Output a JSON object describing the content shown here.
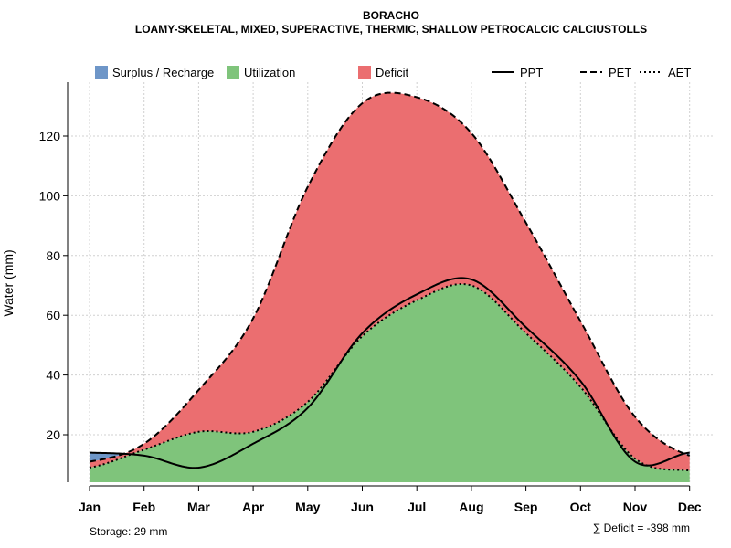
{
  "chart_data": {
    "type": "area",
    "title": "BORACHO",
    "subtitle": "LOAMY-SKELETAL, MIXED, SUPERACTIVE, THERMIC, SHALLOW PETROCALCIC CALCIUSTOLLS",
    "xlabel": "",
    "ylabel": "Water (mm)",
    "categories": [
      "Jan",
      "Feb",
      "Mar",
      "Apr",
      "May",
      "Jun",
      "Jul",
      "Aug",
      "Sep",
      "Oct",
      "Nov",
      "Dec"
    ],
    "ylim": [
      3,
      138
    ],
    "yticks": [
      20,
      40,
      60,
      80,
      100,
      120
    ],
    "ytick_labels": [
      "20",
      "40",
      "60",
      "80",
      "100",
      "120"
    ],
    "grid": true,
    "series": [
      {
        "name": "PPT",
        "style": "solid",
        "values": [
          14,
          13,
          9,
          17,
          29,
          54,
          67,
          72,
          56,
          38,
          11,
          14
        ]
      },
      {
        "name": "PET",
        "style": "dashed",
        "values": [
          11,
          17,
          35,
          59,
          103,
          131,
          133,
          121,
          91,
          58,
          26,
          13
        ]
      },
      {
        "name": "AET",
        "style": "dotted",
        "values": [
          9,
          15,
          21,
          21,
          31,
          53,
          65,
          70,
          54,
          36,
          12,
          8
        ]
      }
    ],
    "legend": {
      "placement": "top",
      "items": [
        {
          "label": "Surplus / Recharge",
          "kind": "patch",
          "color": "#6E96C8"
        },
        {
          "label": "Utilization",
          "kind": "patch",
          "color": "#7FC47B"
        },
        {
          "label": "Deficit",
          "kind": "patch",
          "color": "#EB6E70"
        },
        {
          "label": "PPT",
          "kind": "line",
          "style": "solid"
        },
        {
          "label": "PET",
          "kind": "line",
          "style": "dashed"
        },
        {
          "label": "AET",
          "kind": "line",
          "style": "dotted"
        }
      ]
    },
    "colors": {
      "surplus": "#6E96C8",
      "utilization": "#7FC47B",
      "deficit": "#EB6E70",
      "grid": "#D0D0D0",
      "axis": "#000000"
    },
    "annotations": {
      "storage": "Storage: 29 mm",
      "deficit_sum": "∑ Deficit = -398 mm"
    }
  }
}
